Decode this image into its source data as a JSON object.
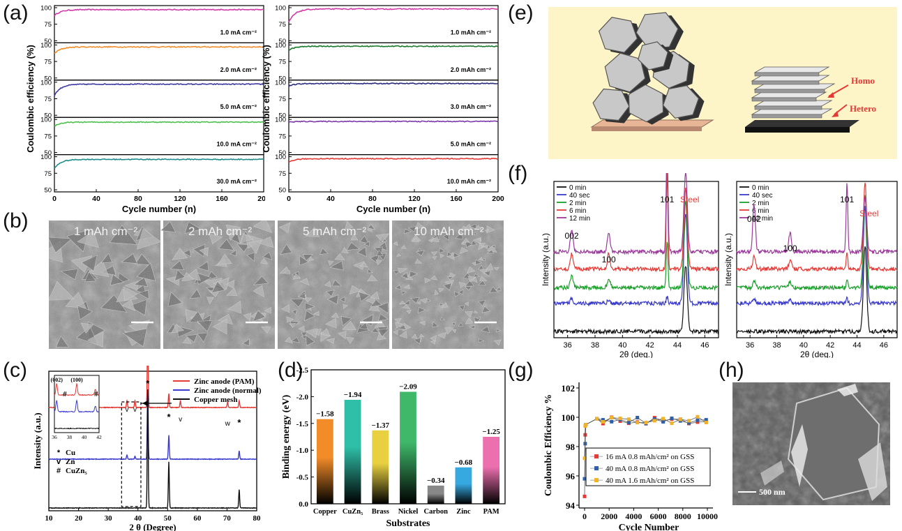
{
  "panel_letters": {
    "a": "(a)",
    "b": "(b)",
    "c": "(c)",
    "d": "(d)",
    "e": "(e)",
    "f": "(f)",
    "g": "(g)",
    "h": "(h)"
  },
  "colors": {
    "magenta": "#d23aa8",
    "orange": "#f28c28",
    "purple": "#3f3aa0",
    "green": "#4cbf4c",
    "teal": "#1e8c8c",
    "darkgreen": "#1a7a2e",
    "navy": "#2a2a7a",
    "violet": "#7a3aa8",
    "red": "#e53935",
    "blue": "#3a3acc",
    "black": "#111111",
    "pink": "#ec6fae",
    "cyan": "#36a9e1",
    "panel_e_bg": "#fdf4c8"
  },
  "chart_data": [
    {
      "id": "a-left",
      "type": "line",
      "xlabel": "Cycle number (n)",
      "ylabel": "Coulombic efficiency (%)",
      "xlim": [
        0,
        200
      ],
      "xticks": [
        "0",
        "40",
        "80",
        "120",
        "160",
        "200"
      ],
      "ylim": [
        50,
        100
      ],
      "yticks": [
        "50",
        "75",
        "100"
      ],
      "series": [
        {
          "name": "1.0 mA cm⁻²",
          "color": "#d23aa8",
          "start": 88,
          "plateau": 97
        },
        {
          "name": "2.0 mA cm⁻²",
          "color": "#f28c28",
          "start": 87,
          "plateau": 97
        },
        {
          "name": "5.0 mA cm⁻²",
          "color": "#3f3aa0",
          "start": 80,
          "plateau": 97
        },
        {
          "name": "10.0 mA cm⁻²",
          "color": "#4cbf4c",
          "start": 90,
          "plateau": 96
        },
        {
          "name": "30.0 mA cm⁻²",
          "color": "#1e8c8c",
          "start": 82,
          "plateau": 96
        }
      ]
    },
    {
      "id": "a-right",
      "type": "line",
      "xlabel": "Cycle number (n)",
      "ylabel": "Coulombic efficiency (%)",
      "xlim": [
        0,
        200
      ],
      "xticks": [
        "0",
        "40",
        "80",
        "120",
        "160",
        "200"
      ],
      "ylim": [
        50,
        100
      ],
      "yticks": [
        "50",
        "75",
        "100"
      ],
      "series": [
        {
          "name": "1.0 mAh cm⁻²",
          "color": "#d23aa8",
          "start": 78,
          "plateau": 98
        },
        {
          "name": "2.0 mAh cm⁻²",
          "color": "#1a7a2e",
          "start": 92,
          "plateau": 98
        },
        {
          "name": "3.0 mAh cm⁻²",
          "color": "#2a2a7a",
          "start": 94,
          "plateau": 98
        },
        {
          "name": "5.0 mAh cm⁻²",
          "color": "#7a3aa8",
          "start": 96,
          "plateau": 97
        },
        {
          "name": "10.0 mAh cm⁻²",
          "color": "#e53935",
          "start": 92,
          "plateau": 97
        }
      ]
    },
    {
      "id": "c",
      "type": "line",
      "xlabel": "2 θ (Degree)",
      "ylabel": "Intensity (a.u.)",
      "xlim": [
        10,
        80
      ],
      "xticks": [
        "10",
        "20",
        "30",
        "40",
        "50",
        "60",
        "70",
        "80"
      ],
      "series": [
        {
          "name": "Zinc anode (PAM)",
          "color": "#e53935",
          "offset": 0.74,
          "peaks": [
            [
              36.3,
              0.05
            ],
            [
              39,
              0.05
            ],
            [
              43.3,
              0.55
            ],
            [
              50.4,
              0.1
            ],
            [
              54.3,
              0.05
            ],
            [
              70.2,
              0.04
            ],
            [
              74.1,
              0.05
            ]
          ]
        },
        {
          "name": "Zinc anode (normal)",
          "color": "#3a3acc",
          "offset": 0.37,
          "peaks": [
            [
              36.3,
              0.03
            ],
            [
              39,
              0.02
            ],
            [
              43.3,
              0.5
            ],
            [
              50.4,
              0.17
            ],
            [
              74.1,
              0.06
            ]
          ]
        },
        {
          "name": "Copper mesh",
          "color": "#111111",
          "offset": 0.02,
          "peaks": [
            [
              43.3,
              0.85
            ],
            [
              50.4,
              0.33
            ],
            [
              74.1,
              0.13
            ]
          ]
        }
      ],
      "inset": {
        "xlim": [
          36,
          42
        ],
        "xticks": [
          "36",
          "38",
          "40",
          "42"
        ],
        "labels": [
          "(002)",
          "(100)",
          "#"
        ]
      },
      "legend_markers": [
        {
          "symbol": "*",
          "label": "Cu"
        },
        {
          "symbol": "v",
          "label": "Zn"
        },
        {
          "symbol": "#",
          "label": "CuZn₅"
        }
      ],
      "annotations": {
        "star": "*",
        "v": "v",
        "w": "w"
      }
    },
    {
      "id": "d",
      "type": "bar",
      "xlabel": "Substrates",
      "ylabel": "Binding energy (eV)",
      "ylim": [
        0,
        -2.5
      ],
      "yticks": [
        "0.0",
        "-0.5",
        "-1.0",
        "-1.5",
        "-2.0",
        "-2.5"
      ],
      "categories": [
        "Copper",
        "CuZn₅",
        "Brass",
        "Nickel",
        "Carbon",
        "Zinc",
        "PAM"
      ],
      "values": [
        -1.58,
        -1.94,
        -1.37,
        -2.09,
        -0.34,
        -0.68,
        -1.25
      ],
      "value_labels": [
        "−1.58",
        "−1.94",
        "−1.37",
        "−2.09",
        "−0.34",
        "−0.68",
        "−1.25"
      ],
      "colors": [
        "#f28c28",
        "#2fbfa8",
        "#e8d040",
        "#3fb86a",
        "#888888",
        "#36a9e1",
        "#ec6fae"
      ]
    },
    {
      "id": "f-left",
      "type": "line",
      "xlabel": "2θ (deg.)",
      "ylabel": "Intensity (a.u.)",
      "xlim": [
        35,
        47
      ],
      "xticks": [
        "36",
        "38",
        "40",
        "42",
        "44",
        "46"
      ],
      "peak_labels": [
        "002",
        "100",
        "101",
        "Steel"
      ],
      "series": [
        {
          "name": "0 min",
          "color": "#111111"
        },
        {
          "name": "40 sec",
          "color": "#3a3acc"
        },
        {
          "name": "2 min",
          "color": "#1aa02a"
        },
        {
          "name": "6 min",
          "color": "#e53935"
        },
        {
          "name": "12 min",
          "color": "#9a3a9a"
        }
      ]
    },
    {
      "id": "f-right",
      "type": "line",
      "xlabel": "2θ (deg.)",
      "ylabel": "Intensity (a.u.)",
      "xlim": [
        35,
        47
      ],
      "xticks": [
        "36",
        "38",
        "40",
        "42",
        "44",
        "46"
      ],
      "peak_labels": [
        "002",
        "100",
        "101",
        "Steel"
      ],
      "series": [
        {
          "name": "0 min",
          "color": "#111111"
        },
        {
          "name": "40 sec",
          "color": "#3a3acc"
        },
        {
          "name": "2 min",
          "color": "#1aa02a"
        },
        {
          "name": "6 min",
          "color": "#e53935"
        },
        {
          "name": "12 min",
          "color": "#9a3a9a"
        }
      ]
    },
    {
      "id": "g",
      "type": "line",
      "xlabel": "Cycle Number",
      "ylabel": "Coulombic Efficiency %",
      "xlim": [
        0,
        10000
      ],
      "xticks": [
        "0",
        "2000",
        "4000",
        "6000",
        "8000",
        "10000"
      ],
      "ylim": [
        94,
        102
      ],
      "yticks": [
        "94",
        "96",
        "98",
        "100",
        "102"
      ],
      "series": [
        {
          "name": "16 mA 0.8 mAh/cm² on GSS",
          "color": "#e53935"
        },
        {
          "name": "40 mA 0.8 mAh/cm² on GSS",
          "color": "#2f5fa8"
        },
        {
          "name": "40 mA 1.6 mAh/cm² on GSS",
          "color": "#f2b227"
        }
      ]
    }
  ],
  "panel_b": {
    "captions": [
      "1 mAh cm⁻²",
      "2 mAh cm⁻²",
      "5 mAh cm⁻²",
      "10 mAh cm⁻²"
    ]
  },
  "panel_e": {
    "homo": "Homo",
    "hetero": "Hetero"
  },
  "panel_h": {
    "scale": "500 nm"
  }
}
